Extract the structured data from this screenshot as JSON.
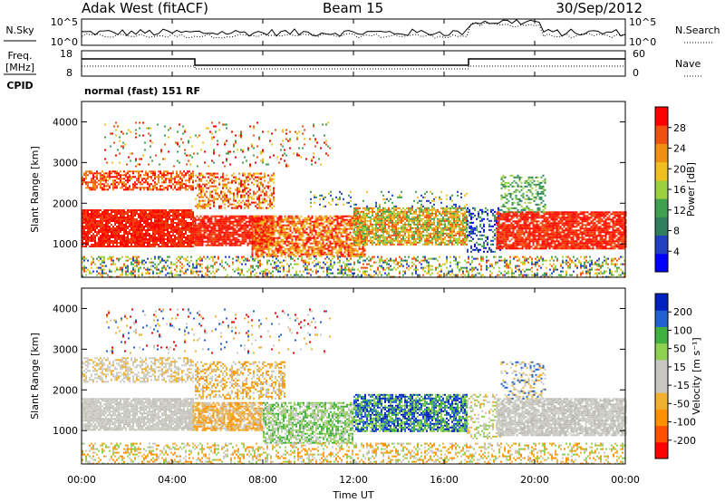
{
  "header": {
    "station": "Adak West (fitACF)",
    "beam": "Beam 15",
    "date": "30/Sep/2012"
  },
  "noise_panel": {
    "left_label": "N.Sky",
    "left_ticks": [
      "10^5",
      "10^0"
    ],
    "right_ticks": [
      "10^5",
      "10^0"
    ],
    "right_label": "N.Search"
  },
  "freq_panel": {
    "left_label_1": "Freq.",
    "left_label_2": "[MHz]",
    "left_ticks": [
      "18",
      "8"
    ],
    "right_ticks": [
      "60",
      "0"
    ],
    "right_label": "Nave",
    "cpid_label": "CPID",
    "cpid_value": "normal (fast) 151 RF"
  },
  "chart_data": [
    {
      "type": "heatmap",
      "name": "power",
      "ylabel": "Slant Range [km]",
      "yticks": [
        "4000",
        "3000",
        "2000",
        "1000"
      ],
      "ylim": [
        180,
        4500
      ],
      "colorbar_label": "Power [dB]",
      "colorbar_ticks": [
        "28",
        "24",
        "20",
        "16",
        "12",
        "8",
        "4"
      ],
      "colorbar_colors": [
        "#0000ff",
        "#2040c0",
        "#2f7f5f",
        "#3fa050",
        "#9cd040",
        "#f0c020",
        "#f09010",
        "#f05010",
        "#ff0000"
      ],
      "bands": [
        {
          "t0": 0,
          "t1": 4.9,
          "r0": 950,
          "r1": 1850,
          "dense": 0.9,
          "colors": [
            "#ff0000",
            "#ff2000",
            "#f04010"
          ]
        },
        {
          "t0": 0,
          "t1": 4.9,
          "r0": 2350,
          "r1": 2800,
          "dense": 0.6,
          "colors": [
            "#ff0000",
            "#f05010",
            "#f09010"
          ]
        },
        {
          "t0": 4.9,
          "t1": 8.5,
          "r0": 950,
          "r1": 1700,
          "dense": 0.85,
          "colors": [
            "#ff0000",
            "#ff2000",
            "#f04010"
          ]
        },
        {
          "t0": 5.0,
          "t1": 8.5,
          "r0": 1900,
          "r1": 2750,
          "dense": 0.45,
          "colors": [
            "#ff0000",
            "#f05010",
            "#f09010",
            "#f0c020"
          ]
        },
        {
          "t0": 7.5,
          "t1": 12.5,
          "r0": 700,
          "r1": 1700,
          "dense": 0.75,
          "colors": [
            "#ff0000",
            "#f05010",
            "#f09010",
            "#f0c020"
          ]
        },
        {
          "t0": 12.0,
          "t1": 17.0,
          "r0": 1000,
          "r1": 1900,
          "dense": 0.8,
          "colors": [
            "#f05010",
            "#f09010",
            "#f0c020",
            "#9cd040",
            "#3fa050"
          ]
        },
        {
          "t0": 10.0,
          "t1": 17.0,
          "r0": 1900,
          "r1": 2300,
          "dense": 0.15,
          "colors": [
            "#2040c0",
            "#3fa050",
            "#f0c020"
          ]
        },
        {
          "t0": 17.0,
          "t1": 18.5,
          "r0": 800,
          "r1": 1900,
          "dense": 0.4,
          "colors": [
            "#2040c0",
            "#0000ff",
            "#3fa050"
          ]
        },
        {
          "t0": 18.3,
          "t1": 24.0,
          "r0": 900,
          "r1": 1800,
          "dense": 0.85,
          "colors": [
            "#ff0000",
            "#ff2000",
            "#f05010"
          ]
        },
        {
          "t0": 18.5,
          "t1": 20.5,
          "r0": 1800,
          "r1": 2700,
          "dense": 0.35,
          "colors": [
            "#3fa050",
            "#9cd040",
            "#2f7f5f"
          ]
        },
        {
          "t0": 0,
          "t1": 24.0,
          "r0": 200,
          "r1": 700,
          "dense": 0.35,
          "colors": [
            "#2040c0",
            "#3fa050",
            "#f0c020",
            "#f05010",
            "#9cd040"
          ]
        },
        {
          "t0": 1.0,
          "t1": 11.0,
          "r0": 2900,
          "r1": 4000,
          "dense": 0.08,
          "colors": [
            "#3fa050",
            "#f0c020",
            "#f05010",
            "#ff0000"
          ]
        }
      ]
    },
    {
      "type": "heatmap",
      "name": "velocity",
      "ylabel": "Slant Range [km]",
      "yticks": [
        "4000",
        "3000",
        "2000",
        "1000"
      ],
      "ylim": [
        180,
        4500
      ],
      "colorbar_label": "Velocity [m s⁻¹]",
      "colorbar_ticks": [
        "200",
        "100",
        "50",
        "15",
        "-15",
        "-50",
        "-100",
        "-200"
      ],
      "colorbar_colors": [
        "#ff0000",
        "#ff5000",
        "#ff9000",
        "#f0b030",
        "#c8c8c0",
        "#c8c8c0",
        "#90d050",
        "#40b040",
        "#2060d0",
        "#0020c0"
      ],
      "bands": [
        {
          "t0": 0,
          "t1": 4.9,
          "r0": 1000,
          "r1": 1800,
          "dense": 0.9,
          "colors": [
            "#c8c8c0",
            "#d0d0c8",
            "#c0c0b8"
          ]
        },
        {
          "t0": 0,
          "t1": 4.9,
          "r0": 2200,
          "r1": 2800,
          "dense": 0.5,
          "colors": [
            "#c8c8c0",
            "#f0b030",
            "#d0d0c8"
          ]
        },
        {
          "t0": 4.9,
          "t1": 8.0,
          "r0": 1000,
          "r1": 1700,
          "dense": 0.8,
          "colors": [
            "#c8c8c0",
            "#f0b030",
            "#ff9000"
          ]
        },
        {
          "t0": 5.0,
          "t1": 9.0,
          "r0": 1800,
          "r1": 2700,
          "dense": 0.45,
          "colors": [
            "#f0b030",
            "#ff9000",
            "#c8c8c0"
          ]
        },
        {
          "t0": 8.0,
          "t1": 12.0,
          "r0": 700,
          "r1": 1700,
          "dense": 0.7,
          "colors": [
            "#90d050",
            "#c8c8c0",
            "#40b040"
          ]
        },
        {
          "t0": 12.0,
          "t1": 17.0,
          "r0": 1000,
          "r1": 1900,
          "dense": 0.8,
          "colors": [
            "#40b040",
            "#90d050",
            "#2060d0",
            "#0020c0"
          ]
        },
        {
          "t0": 17.0,
          "t1": 18.5,
          "r0": 800,
          "r1": 1900,
          "dense": 0.35,
          "colors": [
            "#90d050",
            "#c8c8c0",
            "#f0b030"
          ]
        },
        {
          "t0": 18.3,
          "t1": 24.0,
          "r0": 900,
          "r1": 1800,
          "dense": 0.85,
          "colors": [
            "#c8c8c0",
            "#d0d0c8",
            "#b8b8b0"
          ]
        },
        {
          "t0": 18.5,
          "t1": 20.5,
          "r0": 1800,
          "r1": 2700,
          "dense": 0.35,
          "colors": [
            "#2060d0",
            "#f0b030",
            "#c8c8c0"
          ]
        },
        {
          "t0": 0,
          "t1": 24.0,
          "r0": 200,
          "r1": 700,
          "dense": 0.35,
          "colors": [
            "#f0b030",
            "#ff9000",
            "#c8c8c0",
            "#90d050"
          ]
        },
        {
          "t0": 1.0,
          "t1": 11.0,
          "r0": 2900,
          "r1": 4000,
          "dense": 0.08,
          "colors": [
            "#f0b030",
            "#c8c8c0",
            "#ff0000",
            "#2060d0"
          ]
        }
      ]
    }
  ],
  "xaxis": {
    "ticks": [
      "00:00",
      "04:00",
      "08:00",
      "12:00",
      "16:00",
      "20:00",
      "00:00"
    ],
    "label": "Time UT"
  }
}
